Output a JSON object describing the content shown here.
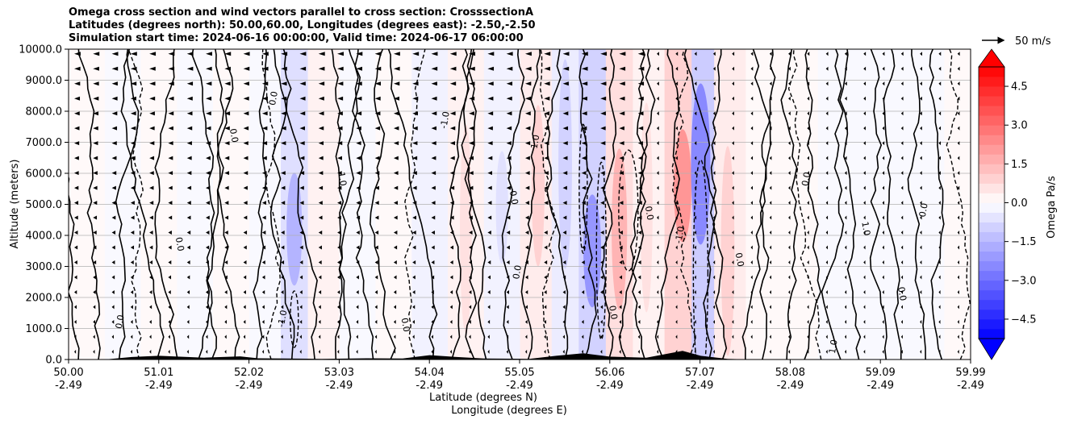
{
  "chart_data": {
    "type": "heatmap",
    "title_lines": [
      "Omega cross section and wind vectors parallel to cross section: CrosssectionA",
      "Latitudes (degrees north): 50.00,60.00, Longitudes (degrees east): -2.50,-2.50",
      "Simulation start time: 2024-06-16 00:00:00, Valid time: 2024-06-17 06:00:00"
    ],
    "ylabel": "Altitude (meters)",
    "xlabel_lines": [
      "Latitude (degrees N)",
      "Longitude (degrees E)"
    ],
    "ylim": [
      0,
      10000
    ],
    "xlim": [
      50.0,
      59.99
    ],
    "y_ticks": [
      0,
      1000,
      2000,
      3000,
      4000,
      5000,
      6000,
      7000,
      8000,
      9000,
      10000
    ],
    "y_tick_labels": [
      "0.0",
      "1000.0",
      "2000.0",
      "3000.0",
      "4000.0",
      "5000.0",
      "6000.0",
      "7000.0",
      "8000.0",
      "9000.0",
      "10000.0"
    ],
    "x_ticks": [
      {
        "lat": "50.00",
        "lon": "-2.49"
      },
      {
        "lat": "51.01",
        "lon": "-2.49"
      },
      {
        "lat": "52.02",
        "lon": "-2.49"
      },
      {
        "lat": "53.03",
        "lon": "-2.49"
      },
      {
        "lat": "54.04",
        "lon": "-2.49"
      },
      {
        "lat": "55.05",
        "lon": "-2.49"
      },
      {
        "lat": "56.06",
        "lon": "-2.49"
      },
      {
        "lat": "57.07",
        "lon": "-2.49"
      },
      {
        "lat": "58.08",
        "lon": "-2.49"
      },
      {
        "lat": "59.09",
        "lon": "-2.49"
      },
      {
        "lat": "59.99",
        "lon": "-2.49"
      }
    ],
    "grid": "horizontal",
    "colorbar": {
      "label": "Omega Pa/s",
      "min": -5.25,
      "max": 5.25,
      "ticks": [
        4.5,
        3.0,
        1.5,
        0.0,
        -1.5,
        -3.0,
        -4.5
      ],
      "tick_labels": [
        "4.5",
        "3.0",
        "1.5",
        "0.0",
        "−1.5",
        "−3.0",
        "−4.5"
      ],
      "extend": "both",
      "cmap": "bwr"
    },
    "quiver_key": {
      "label": "50 m/s"
    },
    "contour_label_samples": [
      "0.0",
      "0.0",
      "0.0",
      "1.0",
      "-1.0",
      "0.0",
      "1.0",
      "0.0",
      "-1.0",
      "0.0",
      "0.0",
      "1.0",
      "0.0",
      "0.0",
      "-1.0",
      "0.0",
      "0.0",
      "0.0",
      "1.0",
      "0.0"
    ],
    "band_omega": [
      {
        "lat": 50.2,
        "omega": 0.2
      },
      {
        "lat": 50.6,
        "omega": -0.3
      },
      {
        "lat": 51.0,
        "omega": 0.3
      },
      {
        "lat": 51.4,
        "omega": -0.4
      },
      {
        "lat": 51.8,
        "omega": 0.3
      },
      {
        "lat": 52.2,
        "omega": -0.5
      },
      {
        "lat": 52.5,
        "omega": -1.8
      },
      {
        "lat": 52.8,
        "omega": 0.6
      },
      {
        "lat": 53.2,
        "omega": -0.5
      },
      {
        "lat": 53.6,
        "omega": 0.5
      },
      {
        "lat": 54.0,
        "omega": -0.6
      },
      {
        "lat": 54.4,
        "omega": 0.7
      },
      {
        "lat": 54.8,
        "omega": -0.8
      },
      {
        "lat": 55.2,
        "omega": 1.0
      },
      {
        "lat": 55.5,
        "omega": -1.2
      },
      {
        "lat": 55.8,
        "omega": -2.5
      },
      {
        "lat": 56.1,
        "omega": 1.8
      },
      {
        "lat": 56.4,
        "omega": 0.8
      },
      {
        "lat": 56.8,
        "omega": 2.5
      },
      {
        "lat": 57.0,
        "omega": -3.0
      },
      {
        "lat": 57.3,
        "omega": 1.2
      },
      {
        "lat": 57.7,
        "omega": 0.5
      },
      {
        "lat": 58.1,
        "omega": 0.4
      },
      {
        "lat": 58.5,
        "omega": -0.3
      },
      {
        "lat": 59.0,
        "omega": -0.2
      },
      {
        "lat": 59.5,
        "omega": -0.3
      },
      {
        "lat": 59.9,
        "omega": 0.2
      }
    ]
  }
}
